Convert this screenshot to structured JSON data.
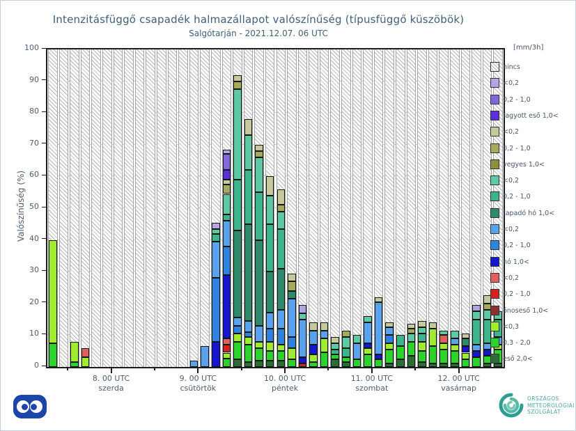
{
  "title": "Intenzitásfüggő csapadék halmazállapot valószínűség (típusfüggő küszöbök)",
  "subtitle": "Salgótarján - 2021.12.07. 06 UTC",
  "y_axis": {
    "label": "Valószínűség (%)",
    "ticks": [
      0,
      10,
      20,
      30,
      40,
      50,
      60,
      70,
      80,
      90,
      100
    ]
  },
  "x_axis": {
    "labels": [
      {
        "line1": "8. 00 UTC",
        "line2": "szerda"
      },
      {
        "line1": "9. 00 UTC",
        "line2": "csütörtök"
      },
      {
        "line1": "10. 00 UTC",
        "line2": "péntek"
      },
      {
        "line1": "11. 00 UTC",
        "line2": "szombat"
      },
      {
        "line1": "12. 00 UTC",
        "line2": "vasárnap"
      }
    ]
  },
  "legend": {
    "header": "[mm/3h]",
    "items": [
      {
        "key": "nincs",
        "label": "nincs",
        "hatch": true,
        "color": "#ffffff"
      },
      {
        "key": "p1",
        "label": "<0,2",
        "color": "#b4a4e4"
      },
      {
        "key": "p2",
        "label": "0,2 - 1,0",
        "color": "#8168dc"
      },
      {
        "key": "p3",
        "label": "fagyott eső 1,0<",
        "color": "#5a30dc"
      },
      {
        "key": "o1",
        "label": "<0,2",
        "color": "#c8c89e"
      },
      {
        "key": "o2",
        "label": "0,2 - 1,0",
        "color": "#a8a85e"
      },
      {
        "key": "o3",
        "label": "vegyes 1,0<",
        "color": "#8e8e3e"
      },
      {
        "key": "t1",
        "label": "<0,2",
        "color": "#5ec9a4"
      },
      {
        "key": "t2",
        "label": "0,2 - 1,0",
        "color": "#3cb48e"
      },
      {
        "key": "t3",
        "label": "tapadó hó 1,0<",
        "color": "#2f8a6d"
      },
      {
        "key": "b1",
        "label": "<0,2",
        "color": "#5aa2ee"
      },
      {
        "key": "b2",
        "label": "0,2 - 1,0",
        "color": "#2f82e0"
      },
      {
        "key": "b3",
        "label": "hó 1,0<",
        "color": "#1616d2"
      },
      {
        "key": "r1",
        "label": "<0,2",
        "color": "#e06060"
      },
      {
        "key": "r2",
        "label": "0,2 - 1,0",
        "color": "#d42222"
      },
      {
        "key": "r3",
        "label": "ónoseső 1,0<",
        "color": "#8e3030"
      },
      {
        "key": "g1",
        "label": "<0,3",
        "color": "#a2ec30"
      },
      {
        "key": "g2",
        "label": "0,3 - 2,0",
        "color": "#2cd32c"
      },
      {
        "key": "g3",
        "label": "eső 2,0<",
        "color": "#2d6e38"
      }
    ]
  },
  "chart_data": {
    "type": "bar",
    "subtype": "stacked-bar-probability",
    "title": "Intenzitásfüggő csapadék halmazállapot valószínűség (típusfüggő küszöbök)",
    "location_run": "Salgótarján - 2021.12.07. 06 UTC",
    "ylabel": "Valószínűség (%)",
    "ylim": [
      0,
      100
    ],
    "grid": "horizontal every 10%",
    "legend_position": "right",
    "x_start": "2021.12.07 06 UTC",
    "slot_hours": 3,
    "n_slots": 42,
    "day_tick_slots": [
      6,
      14,
      22,
      30,
      38
    ],
    "background_fill": "nincs (hatched) fills every slot to 100%",
    "bars": [
      {
        "slot": 1,
        "segments": [
          [
            "g2",
            7.5
          ],
          [
            "g1",
            32.5
          ]
        ]
      },
      {
        "slot": 3,
        "segments": [
          [
            "g2",
            1.5
          ],
          [
            "g1",
            6.5
          ]
        ]
      },
      {
        "slot": 4,
        "segments": [
          [
            "g1",
            3
          ],
          [
            "r1",
            3
          ]
        ]
      },
      {
        "slot": 14,
        "segments": [
          [
            "b1",
            2
          ]
        ]
      },
      {
        "slot": 15,
        "segments": [
          [
            "b1",
            6.5
          ]
        ]
      },
      {
        "slot": 16,
        "segments": [
          [
            "b3",
            8
          ],
          [
            "b2",
            20
          ],
          [
            "b1",
            11.5
          ],
          [
            "t2",
            2.5
          ],
          [
            "t1",
            1.5
          ],
          [
            "p1",
            2
          ]
        ]
      },
      {
        "slot": 17,
        "segments": [
          [
            "g2",
            2.7
          ],
          [
            "g1",
            1.8
          ],
          [
            "r2",
            2.5
          ],
          [
            "r1",
            2
          ],
          [
            "b3",
            20
          ],
          [
            "b2",
            9
          ],
          [
            "b1",
            8
          ],
          [
            "t2",
            2
          ],
          [
            "t1",
            6.5
          ],
          [
            "o2",
            3
          ],
          [
            "o1",
            1.5
          ],
          [
            "p3",
            3
          ],
          [
            "p2",
            5
          ],
          [
            "p1",
            1.5
          ]
        ]
      },
      {
        "slot": 18,
        "segments": [
          [
            "g3",
            2.5
          ],
          [
            "g2",
            5.5
          ],
          [
            "g1",
            2.5
          ],
          [
            "b2",
            2.5
          ],
          [
            "b1",
            2.5
          ],
          [
            "t3",
            27.5
          ],
          [
            "t2",
            16
          ],
          [
            "t1",
            28.5
          ],
          [
            "o2",
            2.5
          ],
          [
            "o1",
            2
          ]
        ]
      },
      {
        "slot": 19,
        "segments": [
          [
            "g3",
            1.5
          ],
          [
            "g2",
            5.5
          ],
          [
            "g1",
            2.5
          ],
          [
            "b2",
            1.5
          ],
          [
            "b1",
            3.5
          ],
          [
            "t3",
            30.5
          ],
          [
            "t2",
            17
          ],
          [
            "t1",
            11
          ],
          [
            "o1",
            5
          ]
        ]
      },
      {
        "slot": 20,
        "segments": [
          [
            "g3",
            2
          ],
          [
            "g2",
            4
          ],
          [
            "g1",
            2
          ],
          [
            "b1",
            5
          ],
          [
            "t3",
            27
          ],
          [
            "t2",
            15
          ],
          [
            "t1",
            11
          ],
          [
            "o2",
            2
          ],
          [
            "o1",
            2
          ]
        ]
      },
      {
        "slot": 21,
        "segments": [
          [
            "g3",
            2
          ],
          [
            "g2",
            3
          ],
          [
            "g1",
            3
          ],
          [
            "b2",
            4
          ],
          [
            "b1",
            5
          ],
          [
            "t3",
            13
          ],
          [
            "t2",
            15
          ],
          [
            "t1",
            9
          ],
          [
            "o1",
            6
          ]
        ]
      },
      {
        "slot": 22,
        "segments": [
          [
            "g3",
            2
          ],
          [
            "g2",
            3
          ],
          [
            "g1",
            2
          ],
          [
            "b2",
            5
          ],
          [
            "b1",
            6
          ],
          [
            "t3",
            13
          ],
          [
            "t2",
            12.5
          ],
          [
            "t1",
            5.5
          ],
          [
            "o2",
            2
          ],
          [
            "o1",
            5
          ]
        ]
      },
      {
        "slot": 23,
        "segments": [
          [
            "g2",
            2.5
          ],
          [
            "g1",
            3.5
          ],
          [
            "b2",
            3.5
          ],
          [
            "b1",
            12
          ],
          [
            "t3",
            2.5
          ],
          [
            "o2",
            3
          ],
          [
            "o1",
            2.5
          ]
        ]
      },
      {
        "slot": 24,
        "segments": [
          [
            "r2",
            1
          ],
          [
            "b3",
            2
          ],
          [
            "b1",
            12
          ],
          [
            "t1",
            2
          ],
          [
            "p1",
            2.5
          ]
        ]
      },
      {
        "slot": 25,
        "segments": [
          [
            "g2",
            1.5
          ],
          [
            "g1",
            2.5
          ],
          [
            "b3",
            3
          ],
          [
            "b1",
            4.5
          ],
          [
            "o1",
            2.5
          ]
        ]
      },
      {
        "slot": 26,
        "segments": [
          [
            "g2",
            4.5
          ],
          [
            "g1",
            4.5
          ],
          [
            "b1",
            2.5
          ],
          [
            "o1",
            2.5
          ]
        ]
      },
      {
        "slot": 27,
        "segments": [
          [
            "g3",
            2.5
          ],
          [
            "g2",
            1.5
          ],
          [
            "t2",
            1.5
          ],
          [
            "t1",
            2
          ],
          [
            "o1",
            2
          ]
        ]
      },
      {
        "slot": 28,
        "segments": [
          [
            "g3",
            1.5
          ],
          [
            "g2",
            1.5
          ],
          [
            "t2",
            3
          ],
          [
            "t1",
            3.5
          ],
          [
            "o2",
            2
          ]
        ]
      },
      {
        "slot": 29,
        "segments": [
          [
            "g2",
            2.5
          ],
          [
            "b1",
            5
          ],
          [
            "t1",
            2.5
          ]
        ]
      },
      {
        "slot": 30,
        "segments": [
          [
            "g2",
            4
          ],
          [
            "g1",
            2
          ],
          [
            "b3",
            1.5
          ],
          [
            "b1",
            6.5
          ],
          [
            "t1",
            2
          ]
        ]
      },
      {
        "slot": 31,
        "segments": [
          [
            "g2",
            2.5
          ],
          [
            "b3",
            1.5
          ],
          [
            "b1",
            16.5
          ],
          [
            "o1",
            1.5
          ]
        ]
      },
      {
        "slot": 32,
        "segments": [
          [
            "g3",
            1
          ],
          [
            "g2",
            4.5
          ],
          [
            "g1",
            2
          ],
          [
            "b2",
            2.5
          ],
          [
            "b1",
            2.5
          ],
          [
            "o1",
            1.5
          ]
        ]
      },
      {
        "slot": 33,
        "segments": [
          [
            "g3",
            2.5
          ],
          [
            "g2",
            4
          ],
          [
            "t2",
            3.5
          ]
        ]
      },
      {
        "slot": 34,
        "segments": [
          [
            "g3",
            3.5
          ],
          [
            "g2",
            4.5
          ],
          [
            "t1",
            2.5
          ],
          [
            "o2",
            1.5
          ],
          [
            "o1",
            1.5
          ]
        ]
      },
      {
        "slot": 35,
        "segments": [
          [
            "g3",
            1.5
          ],
          [
            "g2",
            3.5
          ],
          [
            "g1",
            3
          ],
          [
            "t2",
            2.5
          ],
          [
            "t1",
            2
          ],
          [
            "o1",
            2
          ]
        ]
      },
      {
        "slot": 36,
        "segments": [
          [
            "g3",
            1
          ],
          [
            "g2",
            5.5
          ],
          [
            "g1",
            5.5
          ],
          [
            "o1",
            2
          ]
        ]
      },
      {
        "slot": 37,
        "segments": [
          [
            "g3",
            1
          ],
          [
            "g2",
            4.5
          ],
          [
            "g1",
            2
          ],
          [
            "r1",
            2.5
          ],
          [
            "t1",
            1.5
          ]
        ]
      },
      {
        "slot": 38,
        "segments": [
          [
            "g3",
            1
          ],
          [
            "g2",
            4
          ],
          [
            "g1",
            2
          ],
          [
            "b1",
            2
          ],
          [
            "t1",
            2.5
          ]
        ]
      },
      {
        "slot": 39,
        "segments": [
          [
            "g2",
            2.5
          ],
          [
            "g1",
            2
          ],
          [
            "b3",
            2
          ],
          [
            "t3",
            2.5
          ],
          [
            "o1",
            1.5
          ]
        ]
      },
      {
        "slot": 40,
        "segments": [
          [
            "g2",
            3
          ],
          [
            "b3",
            2
          ],
          [
            "b1",
            2
          ],
          [
            "t2",
            8
          ],
          [
            "t1",
            2.5
          ],
          [
            "p1",
            2
          ]
        ]
      },
      {
        "slot": 41,
        "segments": [
          [
            "g3",
            1
          ],
          [
            "g2",
            2.5
          ],
          [
            "b3",
            2
          ],
          [
            "b1",
            2
          ],
          [
            "t2",
            7.5
          ],
          [
            "t1",
            3
          ],
          [
            "o2",
            2
          ],
          [
            "o1",
            2.5
          ]
        ]
      },
      {
        "slot": 42,
        "segments": [
          [
            "g3",
            1
          ],
          [
            "g2",
            4.5
          ],
          [
            "g1",
            1.5
          ],
          [
            "b1",
            2.5
          ],
          [
            "t2",
            5.5
          ],
          [
            "t1",
            2.5
          ]
        ]
      }
    ]
  },
  "footer": {
    "org_line1": "ORSZÁGOS",
    "org_line2": "METEOROLÓGIAI",
    "org_line3": "SZOLGÁLAT"
  }
}
